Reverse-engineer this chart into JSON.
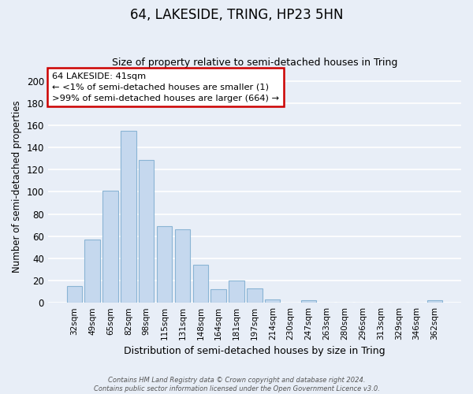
{
  "title": "64, LAKESIDE, TRING, HP23 5HN",
  "subtitle": "Size of property relative to semi-detached houses in Tring",
  "xlabel": "Distribution of semi-detached houses by size in Tring",
  "ylabel": "Number of semi-detached properties",
  "bar_labels": [
    "32sqm",
    "49sqm",
    "65sqm",
    "82sqm",
    "98sqm",
    "115sqm",
    "131sqm",
    "148sqm",
    "164sqm",
    "181sqm",
    "197sqm",
    "214sqm",
    "230sqm",
    "247sqm",
    "263sqm",
    "280sqm",
    "296sqm",
    "313sqm",
    "329sqm",
    "346sqm",
    "362sqm"
  ],
  "bar_values": [
    15,
    57,
    101,
    155,
    129,
    69,
    66,
    34,
    12,
    20,
    13,
    3,
    0,
    2,
    0,
    0,
    0,
    0,
    0,
    0,
    2
  ],
  "bar_color": "#c5d8ee",
  "bar_edge_color": "#8ab4d4",
  "ylim": [
    0,
    210
  ],
  "yticks": [
    0,
    20,
    40,
    60,
    80,
    100,
    120,
    140,
    160,
    180,
    200
  ],
  "annotation_title": "64 LAKESIDE: 41sqm",
  "annotation_line1": "← <1% of semi-detached houses are smaller (1)",
  "annotation_line2": ">99% of semi-detached houses are larger (664) →",
  "footer_line1": "Contains HM Land Registry data © Crown copyright and database right 2024.",
  "footer_line2": "Contains public sector information licensed under the Open Government Licence v3.0.",
  "background_color": "#e8eef7",
  "plot_bg_color": "#e8eef7"
}
